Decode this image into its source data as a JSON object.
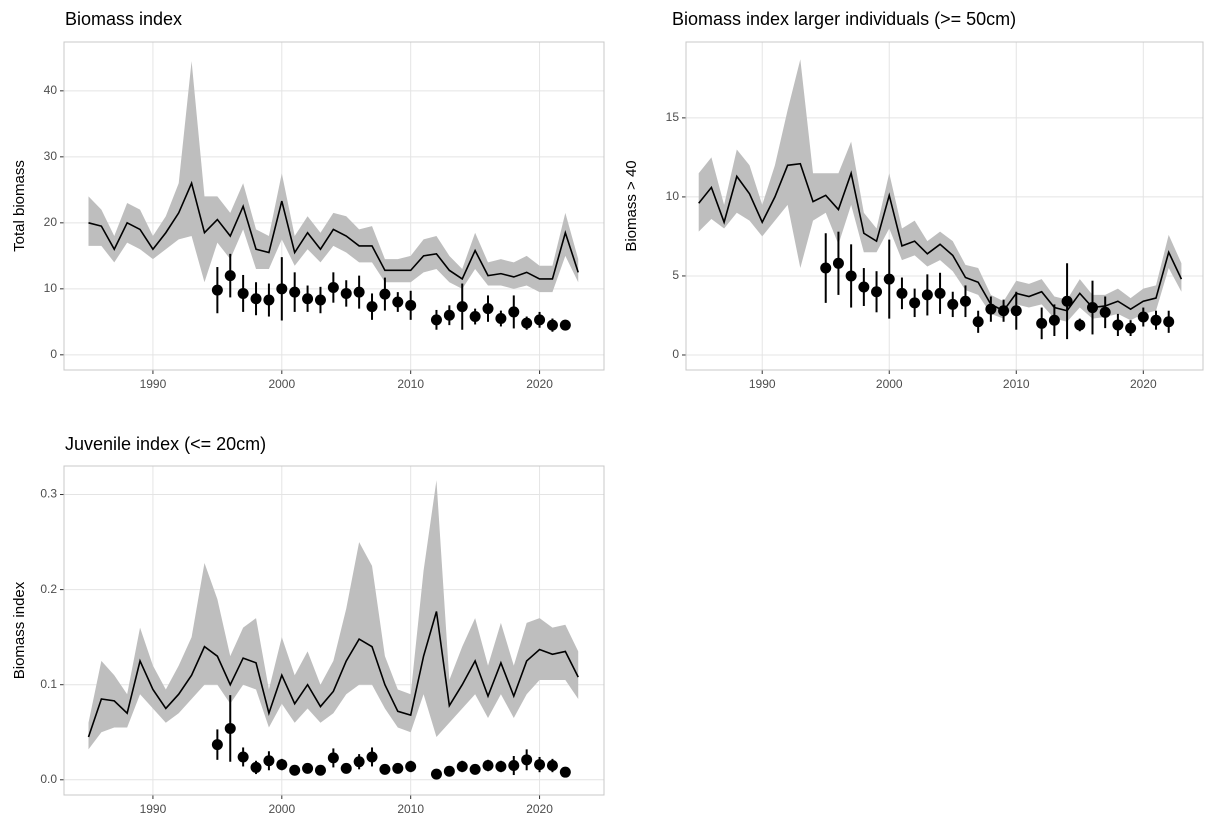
{
  "chart_data": [
    {
      "type": "line",
      "title": "Biomass index",
      "ylabel": "Total biomass",
      "x": [
        1985,
        1986,
        1987,
        1988,
        1989,
        1990,
        1991,
        1992,
        1993,
        1994,
        1995,
        1996,
        1997,
        1998,
        1999,
        2000,
        2001,
        2002,
        2003,
        2004,
        2005,
        2006,
        2007,
        2008,
        2009,
        2010,
        2011,
        2012,
        2013,
        2014,
        2015,
        2016,
        2017,
        2018,
        2019,
        2020,
        2021,
        2022,
        2023
      ],
      "xlim": [
        1983.1,
        2025
      ],
      "xticks": [
        1990,
        2000,
        2010,
        2020
      ],
      "ylim": [
        -2.3,
        47.4
      ],
      "yticks": [
        0,
        10,
        20,
        30,
        40
      ],
      "grid": true,
      "series": [
        {
          "type": "line",
          "color": "#000000",
          "band_color": "#bebebe",
          "values": [
            20,
            19.5,
            16,
            20,
            19,
            16,
            18.5,
            21.5,
            26,
            18.5,
            20.5,
            18,
            22.5,
            16,
            15.5,
            23.3,
            15.5,
            18.5,
            16,
            19,
            18,
            16.5,
            16.5,
            12.8,
            12.8,
            12.8,
            15,
            15.3,
            12.8,
            11.5,
            15.8,
            12,
            12.3,
            11.8,
            12.5,
            11.5,
            11.5,
            18.5,
            12.5
          ],
          "lower": [
            16.5,
            16.5,
            14,
            17,
            16,
            14.5,
            16,
            17.5,
            18,
            11,
            17,
            14.5,
            19,
            13,
            13,
            17.5,
            13.5,
            16,
            14,
            16.5,
            15.5,
            14,
            14,
            11,
            11,
            11,
            12.5,
            13,
            11,
            10,
            13,
            10.5,
            10.5,
            10,
            10.5,
            9.5,
            9.5,
            15,
            11
          ],
          "upper": [
            24,
            22,
            18,
            23,
            22,
            18,
            21,
            26,
            44.5,
            24,
            24,
            21.5,
            26,
            19,
            18,
            27.5,
            18,
            21,
            18.5,
            21.5,
            21,
            19,
            19.5,
            14.5,
            14.5,
            15,
            17.5,
            18,
            15,
            13,
            18.5,
            14,
            14.5,
            14,
            15,
            13.5,
            13.5,
            21.5,
            14.5
          ]
        },
        {
          "type": "point",
          "color": "#000000",
          "values": [
            null,
            null,
            null,
            null,
            null,
            null,
            null,
            null,
            null,
            null,
            9.8,
            12,
            9.3,
            8.5,
            8.3,
            10,
            9.5,
            8.5,
            8.3,
            10.2,
            9.3,
            9.5,
            7.3,
            9.2,
            8,
            7.5,
            null,
            5.3,
            6,
            7.3,
            5.8,
            7,
            5.5,
            6.5,
            4.8,
            5.3,
            4.5,
            4.5,
            null
          ],
          "errors": [
            null,
            null,
            null,
            null,
            null,
            null,
            null,
            null,
            null,
            null,
            3.5,
            3.3,
            2.8,
            2.5,
            2.5,
            4.8,
            3,
            2,
            2,
            2.3,
            2,
            2.5,
            2,
            2.5,
            1.5,
            2.2,
            null,
            1.5,
            1.5,
            3.5,
            1.2,
            2,
            1.2,
            2.5,
            1,
            1.2,
            1,
            0.8,
            null
          ]
        }
      ]
    },
    {
      "type": "line",
      "title": "Biomass index larger individuals (>= 50cm)",
      "ylabel": "Biomass > 40",
      "x": [
        1985,
        1986,
        1987,
        1988,
        1989,
        1990,
        1991,
        1992,
        1993,
        1994,
        1995,
        1996,
        1997,
        1998,
        1999,
        2000,
        2001,
        2002,
        2003,
        2004,
        2005,
        2006,
        2007,
        2008,
        2009,
        2010,
        2011,
        2012,
        2013,
        2014,
        2015,
        2016,
        2017,
        2018,
        2019,
        2020,
        2021,
        2022,
        2023
      ],
      "xlim": [
        1984.0,
        2024.7
      ],
      "xticks": [
        1990,
        2000,
        2010,
        2020
      ],
      "ylim": [
        -0.95,
        19.8
      ],
      "yticks": [
        0,
        5,
        10,
        15
      ],
      "grid": true,
      "series": [
        {
          "type": "line",
          "color": "#000000",
          "band_color": "#bebebe",
          "values": [
            9.6,
            10.6,
            8.4,
            11.3,
            10.2,
            8.4,
            10,
            12,
            12.1,
            9.7,
            10.1,
            9.2,
            11.5,
            7.7,
            7.2,
            10.1,
            6.9,
            7.2,
            6.4,
            7,
            6.3,
            4.9,
            4.6,
            3.2,
            2.8,
            3.9,
            3.7,
            4,
            3,
            2.8,
            3.9,
            3,
            3.1,
            3.4,
            2.9,
            3.4,
            3.6,
            6.5,
            4.8
          ],
          "lower": [
            7.8,
            8.6,
            8,
            9,
            8.5,
            7.5,
            8.5,
            9.5,
            5.5,
            8.5,
            9,
            7,
            9.5,
            6.5,
            6.5,
            8,
            6,
            6.3,
            5.6,
            6,
            5.3,
            4.1,
            3.8,
            2.6,
            2.3,
            3.2,
            3,
            3.2,
            2.3,
            2.1,
            3,
            2.3,
            2.4,
            2.6,
            2.2,
            2.6,
            2.8,
            5.5,
            4
          ],
          "upper": [
            11.5,
            12.5,
            9.5,
            13,
            12,
            9.5,
            12,
            15.5,
            18.7,
            11.5,
            11.5,
            11.5,
            13.5,
            9,
            8,
            11.5,
            8,
            8.5,
            7.2,
            7.8,
            7.2,
            5.7,
            5.5,
            3.8,
            3.4,
            4.7,
            4.5,
            4.8,
            3.7,
            3.5,
            4.8,
            3.8,
            3.8,
            4.2,
            3.6,
            4.2,
            4.4,
            7.6,
            5.8
          ]
        },
        {
          "type": "point",
          "color": "#000000",
          "values": [
            null,
            null,
            null,
            null,
            null,
            null,
            null,
            null,
            null,
            null,
            5.5,
            5.8,
            5,
            4.3,
            4,
            4.8,
            3.9,
            3.3,
            3.8,
            3.9,
            3.2,
            3.4,
            2.1,
            2.9,
            2.8,
            2.8,
            null,
            2,
            2.2,
            3.4,
            1.9,
            3,
            2.7,
            1.9,
            1.7,
            2.4,
            2.2,
            2.1,
            null
          ],
          "errors": [
            null,
            null,
            null,
            null,
            null,
            null,
            null,
            null,
            null,
            null,
            2.2,
            2,
            2,
            1.2,
            1.3,
            2.5,
            1,
            0.9,
            1.3,
            1.3,
            0.8,
            1,
            0.7,
            0.8,
            0.7,
            1.2,
            null,
            1,
            1,
            2.4,
            0.4,
            1.7,
            1,
            0.7,
            0.5,
            0.6,
            0.6,
            0.7,
            null
          ]
        }
      ]
    },
    {
      "type": "line",
      "title": "Juvenile index (<= 20cm)",
      "ylabel": "Biomass index",
      "x": [
        1985,
        1986,
        1987,
        1988,
        1989,
        1990,
        1991,
        1992,
        1993,
        1994,
        1995,
        1996,
        1997,
        1998,
        1999,
        2000,
        2001,
        2002,
        2003,
        2004,
        2005,
        2006,
        2007,
        2008,
        2009,
        2010,
        2011,
        2012,
        2013,
        2014,
        2015,
        2016,
        2017,
        2018,
        2019,
        2020,
        2021,
        2022,
        2023
      ],
      "xlim": [
        1983.1,
        2025
      ],
      "xticks": [
        1990,
        2000,
        2010,
        2020
      ],
      "ylim": [
        -0.016,
        0.33
      ],
      "yticks": [
        {
          "value": 0,
          "label": "0.0"
        },
        0.1,
        0.2,
        0.3
      ],
      "grid": true,
      "series": [
        {
          "type": "line",
          "color": "#000000",
          "band_color": "#bebebe",
          "values": [
            0.045,
            0.085,
            0.083,
            0.07,
            0.125,
            0.095,
            0.075,
            0.09,
            0.11,
            0.14,
            0.13,
            0.1,
            0.128,
            0.123,
            0.07,
            0.11,
            0.08,
            0.1,
            0.077,
            0.093,
            0.125,
            0.148,
            0.14,
            0.1,
            0.072,
            0.068,
            0.13,
            0.177,
            0.078,
            0.1,
            0.125,
            0.088,
            0.123,
            0.088,
            0.125,
            0.137,
            0.132,
            0.135,
            0.108
          ],
          "lower": [
            0.032,
            0.05,
            0.055,
            0.055,
            0.09,
            0.075,
            0.06,
            0.07,
            0.085,
            0.1,
            0.1,
            0.08,
            0.1,
            0.095,
            0.055,
            0.08,
            0.06,
            0.075,
            0.06,
            0.07,
            0.09,
            0.1,
            0.1,
            0.075,
            0.055,
            0.05,
            0.09,
            0.045,
            0.06,
            0.075,
            0.09,
            0.065,
            0.09,
            0.065,
            0.09,
            0.105,
            0.105,
            0.105,
            0.085
          ],
          "upper": [
            0.06,
            0.125,
            0.11,
            0.09,
            0.16,
            0.12,
            0.095,
            0.12,
            0.15,
            0.228,
            0.19,
            0.13,
            0.16,
            0.17,
            0.095,
            0.15,
            0.11,
            0.135,
            0.1,
            0.125,
            0.18,
            0.25,
            0.225,
            0.13,
            0.095,
            0.09,
            0.22,
            0.315,
            0.105,
            0.14,
            0.17,
            0.12,
            0.165,
            0.12,
            0.165,
            0.17,
            0.16,
            0.163,
            0.135
          ]
        },
        {
          "type": "point",
          "color": "#000000",
          "values": [
            null,
            null,
            null,
            null,
            null,
            null,
            null,
            null,
            null,
            null,
            0.037,
            0.054,
            0.024,
            0.013,
            0.02,
            0.016,
            0.01,
            0.012,
            0.01,
            0.023,
            0.012,
            0.019,
            0.024,
            0.011,
            0.012,
            0.014,
            null,
            0.006,
            0.009,
            0.014,
            0.011,
            0.015,
            0.014,
            0.015,
            0.021,
            0.016,
            0.015,
            0.008,
            null
          ],
          "errors": [
            null,
            null,
            null,
            null,
            null,
            null,
            null,
            null,
            null,
            null,
            0.016,
            0.035,
            0.01,
            0.007,
            0.01,
            0.006,
            0.004,
            0.004,
            0.004,
            0.01,
            0.005,
            0.008,
            0.01,
            0.004,
            0.005,
            0.006,
            null,
            0.003,
            0.004,
            0.006,
            0.004,
            0.006,
            0.006,
            0.01,
            0.011,
            0.008,
            0.007,
            0.003,
            null
          ]
        }
      ]
    }
  ]
}
